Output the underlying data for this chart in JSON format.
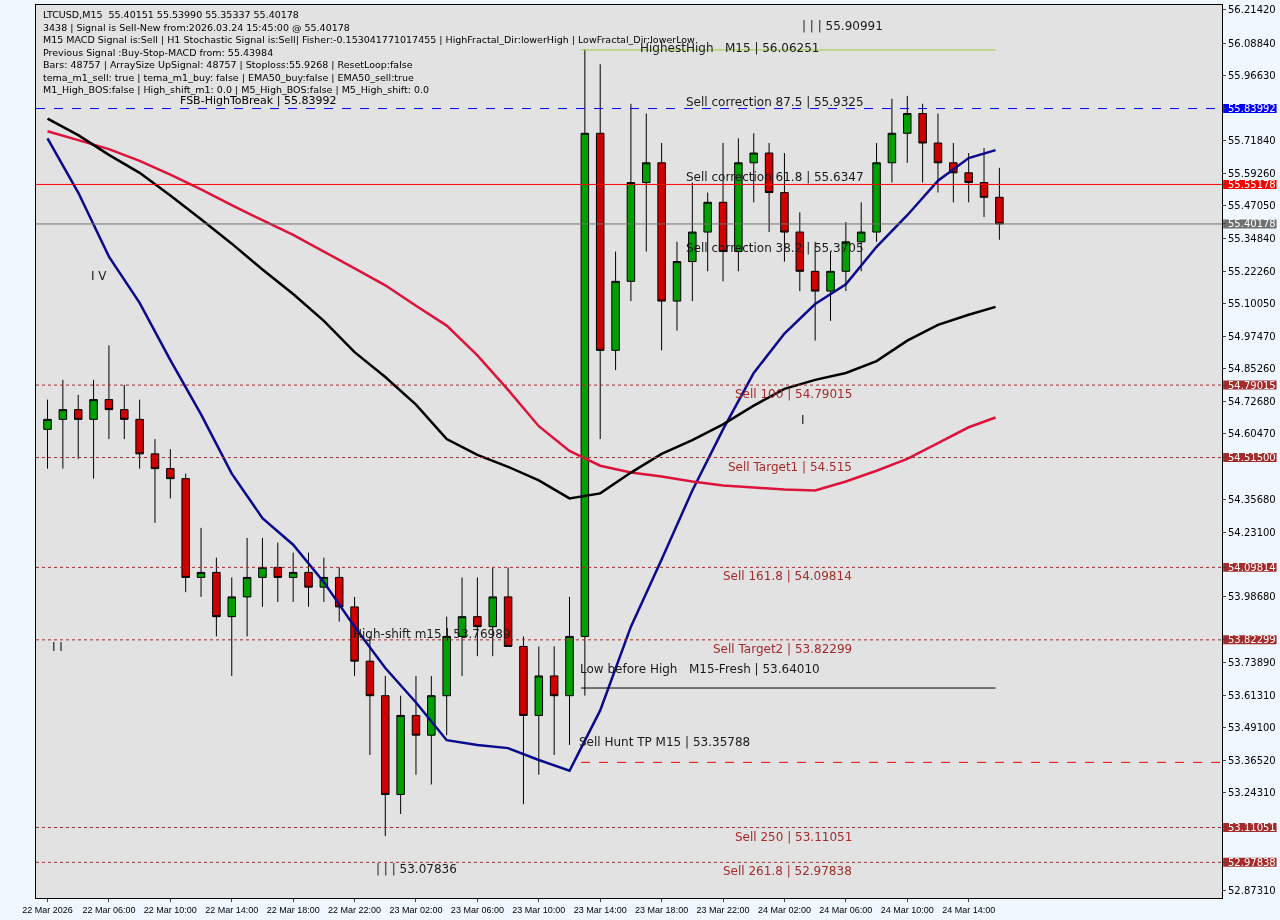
{
  "chart_data": {
    "type": "candlestick",
    "x": [
      "2026-03-22T02:00",
      "2026-03-22T03:00",
      "2026-03-22T04:00",
      "2026-03-22T05:00",
      "2026-03-22T06:00",
      "2026-03-22T07:00",
      "2026-03-22T08:00",
      "2026-03-22T09:00",
      "2026-03-22T10:00",
      "2026-03-22T11:00",
      "2026-03-22T12:00",
      "2026-03-22T13:00",
      "2026-03-22T14:00",
      "2026-03-22T15:00",
      "2026-03-22T16:00",
      "2026-03-22T17:00",
      "2026-03-22T18:00",
      "2026-03-22T19:00",
      "2026-03-22T20:00",
      "2026-03-22T21:00",
      "2026-03-22T22:00",
      "2026-03-22T23:00",
      "2026-03-23T00:00",
      "2026-03-23T01:00",
      "2026-03-23T02:00",
      "2026-03-23T03:00",
      "2026-03-23T04:00",
      "2026-03-23T05:00",
      "2026-03-23T06:00",
      "2026-03-23T07:00",
      "2026-03-23T08:00",
      "2026-03-23T09:00",
      "2026-03-23T10:00",
      "2026-03-23T11:00",
      "2026-03-23T12:00",
      "2026-03-23T13:00",
      "2026-03-23T14:00",
      "2026-03-23T15:00",
      "2026-03-23T16:00",
      "2026-03-23T17:00",
      "2026-03-23T18:00",
      "2026-03-23T19:00",
      "2026-03-23T20:00",
      "2026-03-23T21:00",
      "2026-03-23T22:00",
      "2026-03-23T23:00",
      "2026-03-24T00:00",
      "2026-03-24T01:00",
      "2026-03-24T02:00",
      "2026-03-24T03:00",
      "2026-03-24T04:00",
      "2026-03-24T05:00",
      "2026-03-24T06:00",
      "2026-03-24T07:00",
      "2026-03-24T08:00",
      "2026-03-24T09:00",
      "2026-03-24T10:00",
      "2026-03-24T11:00",
      "2026-03-24T12:00",
      "2026-03-24T13:00",
      "2026-03-24T14:00",
      "2026-03-24T15:00",
      "2026-03-24T16:00"
    ],
    "ohlc": [
      [
        54.622,
        54.735,
        54.473,
        54.66
      ],
      [
        54.66,
        54.81,
        54.473,
        54.697
      ],
      [
        54.697,
        54.753,
        54.51,
        54.66
      ],
      [
        54.66,
        54.81,
        54.435,
        54.735
      ],
      [
        54.735,
        54.941,
        54.585,
        54.697
      ],
      [
        54.697,
        54.791,
        54.585,
        54.66
      ],
      [
        54.66,
        54.735,
        54.473,
        54.529
      ],
      [
        54.529,
        54.585,
        54.267,
        54.473
      ],
      [
        54.473,
        54.547,
        54.36,
        54.435
      ],
      [
        54.435,
        54.454,
        54.004,
        54.06
      ],
      [
        54.06,
        54.248,
        53.986,
        54.079
      ],
      [
        54.079,
        54.135,
        53.836,
        53.911
      ],
      [
        53.911,
        54.06,
        53.686,
        53.986
      ],
      [
        53.986,
        54.21,
        53.836,
        54.06
      ],
      [
        54.06,
        54.21,
        53.948,
        54.098
      ],
      [
        54.098,
        54.192,
        53.967,
        54.06
      ],
      [
        54.06,
        54.154,
        53.967,
        54.079
      ],
      [
        54.079,
        54.154,
        53.948,
        54.023
      ],
      [
        54.023,
        54.135,
        53.967,
        54.06
      ],
      [
        54.06,
        54.098,
        53.892,
        53.948
      ],
      [
        53.948,
        53.986,
        53.686,
        53.742
      ],
      [
        53.742,
        53.836,
        53.386,
        53.611
      ],
      [
        53.611,
        53.686,
        53.078,
        53.236
      ],
      [
        53.236,
        53.611,
        53.162,
        53.536
      ],
      [
        53.536,
        53.686,
        53.311,
        53.461
      ],
      [
        53.461,
        53.686,
        53.274,
        53.611
      ],
      [
        53.611,
        53.911,
        53.461,
        53.836
      ],
      [
        53.836,
        54.06,
        53.686,
        53.911
      ],
      [
        53.911,
        54.06,
        53.761,
        53.873
      ],
      [
        53.873,
        54.098,
        53.761,
        53.986
      ],
      [
        53.986,
        54.098,
        53.798,
        53.798
      ],
      [
        53.798,
        53.836,
        53.199,
        53.536
      ],
      [
        53.536,
        53.798,
        53.311,
        53.686
      ],
      [
        53.686,
        53.798,
        53.386,
        53.611
      ],
      [
        53.611,
        53.986,
        53.424,
        53.836
      ],
      [
        53.836,
        56.064,
        53.611,
        55.746
      ],
      [
        55.746,
        56.008,
        54.585,
        54.922
      ],
      [
        54.922,
        55.297,
        54.847,
        55.184
      ],
      [
        55.184,
        55.858,
        55.109,
        55.559
      ],
      [
        55.559,
        55.821,
        55.297,
        55.634
      ],
      [
        55.634,
        55.709,
        54.922,
        55.109
      ],
      [
        55.109,
        55.334,
        54.997,
        55.259
      ],
      [
        55.259,
        55.559,
        55.109,
        55.371
      ],
      [
        55.371,
        55.521,
        55.222,
        55.484
      ],
      [
        55.484,
        55.709,
        55.184,
        55.297
      ],
      [
        55.297,
        55.727,
        55.222,
        55.634
      ],
      [
        55.634,
        55.746,
        55.484,
        55.671
      ],
      [
        55.671,
        55.709,
        55.371,
        55.521
      ],
      [
        55.521,
        55.671,
        55.259,
        55.371
      ],
      [
        55.371,
        55.446,
        55.147,
        55.222
      ],
      [
        55.222,
        55.334,
        54.959,
        55.147
      ],
      [
        55.147,
        55.297,
        55.034,
        55.222
      ],
      [
        55.222,
        55.409,
        55.147,
        55.334
      ],
      [
        55.334,
        55.484,
        55.222,
        55.371
      ],
      [
        55.371,
        55.709,
        55.334,
        55.634
      ],
      [
        55.634,
        55.877,
        55.559,
        55.746
      ],
      [
        55.746,
        55.888,
        55.634,
        55.821
      ],
      [
        55.821,
        55.858,
        55.559,
        55.709
      ],
      [
        55.709,
        55.821,
        55.521,
        55.634
      ],
      [
        55.634,
        55.709,
        55.484,
        55.596
      ],
      [
        55.596,
        55.671,
        55.484,
        55.559
      ],
      [
        55.559,
        55.69,
        55.428,
        55.503
      ],
      [
        55.503,
        55.615,
        55.342,
        55.402
      ]
    ],
    "colors": [
      "#00a000",
      "#00a000",
      "#d00000",
      "#00a000",
      "#d00000",
      "#d00000",
      "#d00000",
      "#d00000",
      "#d00000",
      "#d00000",
      "#00a000",
      "#d00000",
      "#00a000",
      "#00a000",
      "#00a000",
      "#d00000",
      "#00a000",
      "#d00000",
      "#00a000",
      "#d00000",
      "#d00000",
      "#d00000",
      "#d00000",
      "#00a000",
      "#d00000",
      "#00a000",
      "#00a000",
      "#00a000",
      "#d00000",
      "#00a000",
      "#d00000",
      "#d00000",
      "#00a000",
      "#d00000",
      "#00a000",
      "#00a000",
      "#d00000",
      "#00a000",
      "#00a000",
      "#00a000",
      "#d00000",
      "#00a000",
      "#00a000",
      "#00a000",
      "#d00000",
      "#00a000",
      "#00a000",
      "#d00000",
      "#d00000",
      "#d00000",
      "#d00000",
      "#00a000",
      "#00a000",
      "#00a000",
      "#00a000",
      "#00a000",
      "#00a000",
      "#d00000",
      "#d00000",
      "#d00000",
      "#d00000",
      "#d00000",
      "#d00000"
    ],
    "series": [
      {
        "type": "line",
        "color": "#0a0a8c",
        "x": [
          "2026-03-22T02:00",
          "2026-03-22T04:00",
          "2026-03-22T06:00",
          "2026-03-22T08:00",
          "2026-03-22T10:00",
          "2026-03-22T12:00",
          "2026-03-22T14:00",
          "2026-03-22T16:00",
          "2026-03-22T18:00",
          "2026-03-22T20:00",
          "2026-03-22T22:00",
          "2026-03-23T00:00",
          "2026-03-23T02:00",
          "2026-03-23T04:00",
          "2026-03-23T06:00",
          "2026-03-23T08:00",
          "2026-03-23T10:00",
          "2026-03-23T12:00",
          "2026-03-23T14:00",
          "2026-03-23T16:00",
          "2026-03-23T18:00",
          "2026-03-23T20:00",
          "2026-03-23T22:00",
          "2026-03-24T00:00",
          "2026-03-24T02:00",
          "2026-03-24T04:00",
          "2026-03-24T06:00",
          "2026-03-24T08:00",
          "2026-03-24T10:00",
          "2026-03-24T12:00",
          "2026-03-24T14:00",
          "2026-03-24T15:45"
        ],
        "values": [
          55.727,
          55.521,
          55.278,
          55.102,
          54.885,
          54.679,
          54.454,
          54.285,
          54.184,
          54.042,
          53.873,
          53.716,
          53.585,
          53.442,
          53.424,
          53.412,
          53.367,
          53.326,
          53.555,
          53.873,
          54.128,
          54.39,
          54.622,
          54.836,
          54.986,
          55.098,
          55.173,
          55.315,
          55.435,
          55.566,
          55.652,
          55.682
        ]
      },
      {
        "type": "line",
        "color": "#dc143c",
        "x": [
          "2026-03-22T02:00",
          "2026-03-22T04:00",
          "2026-03-22T06:00",
          "2026-03-22T08:00",
          "2026-03-22T10:00",
          "2026-03-22T12:00",
          "2026-03-22T14:00",
          "2026-03-22T16:00",
          "2026-03-22T18:00",
          "2026-03-22T20:00",
          "2026-03-22T22:00",
          "2026-03-23T00:00",
          "2026-03-23T02:00",
          "2026-03-23T04:00",
          "2026-03-23T06:00",
          "2026-03-23T08:00",
          "2026-03-23T10:00",
          "2026-03-23T12:00",
          "2026-03-23T14:00",
          "2026-03-23T16:00",
          "2026-03-23T18:00",
          "2026-03-23T20:00",
          "2026-03-23T22:00",
          "2026-03-24T00:00",
          "2026-03-24T02:00",
          "2026-03-24T04:00",
          "2026-03-24T06:00",
          "2026-03-24T08:00",
          "2026-03-24T10:00",
          "2026-03-24T12:00",
          "2026-03-24T14:00",
          "2026-03-24T15:45"
        ],
        "values": [
          55.754,
          55.72,
          55.686,
          55.641,
          55.589,
          55.533,
          55.473,
          55.416,
          55.36,
          55.297,
          55.233,
          55.169,
          55.091,
          55.016,
          54.903,
          54.772,
          54.634,
          54.54,
          54.484,
          54.458,
          54.443,
          54.424,
          54.409,
          54.401,
          54.394,
          54.39,
          54.424,
          54.465,
          54.51,
          54.57,
          54.63,
          54.667
        ]
      },
      {
        "type": "line",
        "color": "#000000",
        "x": [
          "2026-03-22T02:00",
          "2026-03-22T04:00",
          "2026-03-22T06:00",
          "2026-03-22T08:00",
          "2026-03-22T10:00",
          "2026-03-22T12:00",
          "2026-03-22T14:00",
          "2026-03-22T16:00",
          "2026-03-22T18:00",
          "2026-03-22T20:00",
          "2026-03-22T22:00",
          "2026-03-23T00:00",
          "2026-03-23T02:00",
          "2026-03-23T04:00",
          "2026-03-23T06:00",
          "2026-03-23T08:00",
          "2026-03-23T10:00",
          "2026-03-23T12:00",
          "2026-03-23T14:00",
          "2026-03-23T16:00",
          "2026-03-23T18:00",
          "2026-03-23T20:00",
          "2026-03-23T22:00",
          "2026-03-24T00:00",
          "2026-03-24T02:00",
          "2026-03-24T04:00",
          "2026-03-24T06:00",
          "2026-03-24T08:00",
          "2026-03-24T10:00",
          "2026-03-24T12:00",
          "2026-03-24T14:00",
          "2026-03-24T15:45"
        ],
        "values": [
          55.802,
          55.739,
          55.664,
          55.596,
          55.51,
          55.42,
          55.327,
          55.229,
          55.136,
          55.034,
          54.915,
          54.821,
          54.716,
          54.585,
          54.525,
          54.48,
          54.428,
          54.36,
          54.379,
          54.458,
          54.529,
          54.581,
          54.641,
          54.712,
          54.776,
          54.81,
          54.836,
          54.881,
          54.959,
          55.019,
          55.057,
          55.087
        ]
      },
      {
        "type": "line",
        "color": "#9acd32",
        "x": [
          "2026-03-23T12:45",
          "2026-03-24T15:45"
        ],
        "values": [
          56.06251,
          56.06251
        ]
      },
      {
        "type": "line",
        "color": "#000000",
        "x": [
          "2026-03-23T12:45",
          "2026-03-24T15:45"
        ],
        "values": [
          53.6401,
          53.6401
        ]
      },
      {
        "type": "line",
        "color": "#ff0000",
        "line_style": "dashed",
        "x": [
          "2026-03-23T12:45",
          "2026-03-25T06:30"
        ],
        "values": [
          53.35788,
          53.35788
        ]
      }
    ],
    "xlim": [
      "2026-03-22T01:15",
      "2026-03-25T06:30"
    ],
    "xticks": [
      {
        "value": "2026-03-22T02:00",
        "label": "22 Mar 2026"
      },
      {
        "value": "2026-03-22T06:00",
        "label": "22 Mar 06:00"
      },
      {
        "value": "2026-03-22T10:00",
        "label": "22 Mar 10:00"
      },
      {
        "value": "2026-03-22T14:00",
        "label": "22 Mar 14:00"
      },
      {
        "value": "2026-03-22T18:00",
        "label": "22 Mar 18:00"
      },
      {
        "value": "2026-03-22T22:00",
        "label": "22 Mar 22:00"
      },
      {
        "value": "2026-03-23T02:00",
        "label": "23 Mar 02:00"
      },
      {
        "value": "2026-03-23T06:00",
        "label": "23 Mar 06:00"
      },
      {
        "value": "2026-03-23T10:00",
        "label": "23 Mar 10:00"
      },
      {
        "value": "2026-03-23T14:00",
        "label": "23 Mar 14:00"
      },
      {
        "value": "2026-03-23T18:00",
        "label": "23 Mar 18:00"
      },
      {
        "value": "2026-03-23T22:00",
        "label": "23 Mar 22:00"
      },
      {
        "value": "2026-03-24T02:00",
        "label": "24 Mar 02:00"
      },
      {
        "value": "2026-03-24T06:00",
        "label": "24 Mar 06:00"
      },
      {
        "value": "2026-03-24T10:00",
        "label": "24 Mar 10:00"
      },
      {
        "value": "2026-03-24T14:00",
        "label": "24 Mar 14:00"
      }
    ],
    "ylim": [
      52.843,
      56.233
    ],
    "yticks": [
      {
        "value": 56.2142,
        "label": "56.21420"
      },
      {
        "value": 56.0884,
        "label": "56.08840"
      },
      {
        "value": 55.9663,
        "label": "55.96630"
      },
      {
        "value": 55.7184,
        "label": "55.71840"
      },
      {
        "value": 55.5926,
        "label": "55.59260"
      },
      {
        "value": 55.4705,
        "label": "55.47050"
      },
      {
        "value": 55.3484,
        "label": "55.34840"
      },
      {
        "value": 55.2226,
        "label": "55.22260"
      },
      {
        "value": 55.1005,
        "label": "55.10050"
      },
      {
        "value": 54.9747,
        "label": "54.97470"
      },
      {
        "value": 54.8526,
        "label": "54.85260"
      },
      {
        "value": 54.7268,
        "label": "54.72680"
      },
      {
        "value": 54.6047,
        "label": "54.60470"
      },
      {
        "value": 55.83992,
        "label": "55.83992"
      },
      {
        "value": 55.55178,
        "label": "55.55178"
      },
      {
        "value": 55.40178,
        "label": "55.40178"
      },
      {
        "value": 54.79015,
        "label": "54.79015"
      },
      {
        "value": 54.515,
        "label": "54.51500"
      },
      {
        "value": 54.09814,
        "label": "54.09814"
      },
      {
        "value": 53.82299,
        "label": "53.82299"
      },
      {
        "value": 53.11051,
        "label": "53.11051"
      },
      {
        "value": 52.97838,
        "label": "52.97838"
      },
      {
        "value": 54.3568,
        "label": "54.35680"
      },
      {
        "value": 54.231,
        "label": "54.23100"
      },
      {
        "value": 53.9868,
        "label": "53.98680"
      },
      {
        "value": 53.7389,
        "label": "53.73890"
      },
      {
        "value": 53.6131,
        "label": "53.61310"
      },
      {
        "value": 53.491,
        "label": "53.49100"
      },
      {
        "value": 53.3652,
        "label": "53.36520"
      },
      {
        "value": 53.2431,
        "label": "53.24310"
      },
      {
        "value": 52.8731,
        "label": "52.87310"
      }
    ],
    "ref_lines": [
      {
        "axis": "y",
        "value": 55.83992,
        "label": "FSB-HighToBreak | 55.83992",
        "color": "#0000ff",
        "line_style": "dashed"
      },
      {
        "axis": "y",
        "value": 55.55178,
        "color": "#ff0000",
        "line_style": "solid"
      },
      {
        "axis": "y",
        "value": 55.40178,
        "color": "#707070",
        "line_style": "solid"
      },
      {
        "axis": "y",
        "value": 54.79015,
        "label": "Sell 100 | 54.79015",
        "color": "#a52a2a",
        "line_style": "dotted"
      },
      {
        "axis": "y",
        "value": 54.515,
        "label": "Sell Target1 | 54.515",
        "color": "#a52a2a",
        "line_style": "dotted"
      },
      {
        "axis": "y",
        "value": 54.09814,
        "label": "Sell 161.8 | 54.09814",
        "color": "#a52a2a",
        "line_style": "dotted"
      },
      {
        "axis": "y",
        "value": 53.82299,
        "label": "Sell Target2 | 53.82299",
        "color": "#a52a2a",
        "line_style": "dotted"
      },
      {
        "axis": "y",
        "value": 53.11051,
        "label": "Sell 250 | 53.11051",
        "color": "#a52a2a",
        "line_style": "dotted"
      },
      {
        "axis": "y",
        "value": 52.97838,
        "label": "Sell 261.8 | 52.97838",
        "color": "#a52a2a",
        "line_style": "dotted"
      }
    ],
    "annotations": [
      "LTCUSD,M15  55.40151 55.53990 55.35337 55.40178",
      "3438 | Signal is Sell-New from:2026.03.24 15:45:00 @ 55.40178",
      "M15 MACD Signal is:Sell | H1 Stochastic Signal is:Sell| Fisher:-0.153041771017455 | HighFractal_Dir:lowerHigh | LowFractal_Dir:lowerLow",
      "Previous Signal :Buy-Stop-MACD from: 55.43984",
      "Bars: 48757 | ArraySize UpSignal: 48757 | Stoploss:55.9268 | ResetLoop:false",
      "tema_m1_sell: true | tema_m1_buy: false | EMA50_buy:false | EMA50_sell:true",
      "M1_High_BOS:false | High_shift_m1: 0.0 | M5_High_BOS:false | M5_High_shift: 0.0",
      "HighestHigh   M15 | 56.06251",
      "| | | 55.90991",
      "Sell correction 87.5 | 55.9325",
      "Sell correction 61.8 | 55.6347",
      "Sell correction 38.2 | 55.3705",
      "Low before High   M15-Fresh | 53.64010",
      "High-shift m15 | 53.76989",
      "Sell Hunt TP M15 | 53.35788",
      "| | | 53.07836",
      "I V",
      "I",
      "I I"
    ],
    "grid": false
  }
}
